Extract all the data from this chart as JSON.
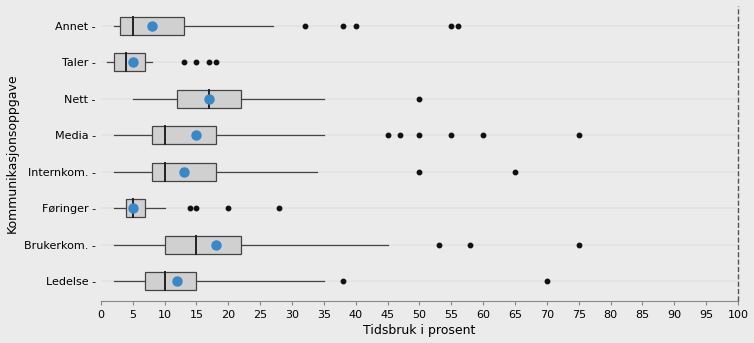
{
  "categories": [
    "Annet -",
    "Taler -",
    "Nett -",
    "Media -",
    "Internkom. -",
    "Føringer -",
    "Brukerkom. -",
    "Ledelse -"
  ],
  "boxes": [
    {
      "q1": 3,
      "median": 5,
      "q3": 13,
      "whisker_low": 2,
      "whisker_high": 27,
      "mean": 8,
      "outliers": [
        32,
        38,
        40,
        55,
        56
      ]
    },
    {
      "q1": 2,
      "median": 4,
      "q3": 7,
      "whisker_low": 1,
      "whisker_high": 8,
      "mean": 5,
      "outliers": [
        13,
        15,
        17,
        18
      ]
    },
    {
      "q1": 12,
      "median": 17,
      "q3": 22,
      "whisker_low": 5,
      "whisker_high": 35,
      "mean": 17,
      "outliers": [
        50
      ]
    },
    {
      "q1": 8,
      "median": 10,
      "q3": 18,
      "whisker_low": 2,
      "whisker_high": 35,
      "mean": 15,
      "outliers": [
        45,
        47,
        50,
        55,
        60,
        75
      ]
    },
    {
      "q1": 8,
      "median": 10,
      "q3": 18,
      "whisker_low": 2,
      "whisker_high": 34,
      "mean": 13,
      "outliers": [
        50,
        65
      ]
    },
    {
      "q1": 4,
      "median": 5,
      "q3": 7,
      "whisker_low": 2,
      "whisker_high": 10,
      "mean": 5,
      "outliers": [
        14,
        15,
        20,
        28
      ]
    },
    {
      "q1": 10,
      "median": 15,
      "q3": 22,
      "whisker_low": 2,
      "whisker_high": 45,
      "mean": 18,
      "outliers": [
        53,
        58,
        75
      ]
    },
    {
      "q1": 7,
      "median": 10,
      "q3": 15,
      "whisker_low": 2,
      "whisker_high": 35,
      "mean": 12,
      "outliers": [
        38,
        70
      ]
    }
  ],
  "box_color": "#d0d0d0",
  "box_edgecolor": "#444444",
  "whisker_color": "#444444",
  "median_color": "#222222",
  "mean_color": "#3a87c8",
  "outlier_color": "#111111",
  "background_color": "#ebebeb",
  "xlabel": "Tidsbruk i prosent",
  "ylabel": "Kommunikasjonsoppgave",
  "xlim": [
    0,
    100
  ],
  "xticks": [
    0,
    5,
    10,
    15,
    20,
    25,
    30,
    35,
    40,
    45,
    50,
    55,
    60,
    65,
    70,
    75,
    80,
    85,
    90,
    95,
    100
  ],
  "dashed_line_x": 100,
  "label_fontsize": 9,
  "tick_fontsize": 8,
  "ylabel_fontsize": 9
}
